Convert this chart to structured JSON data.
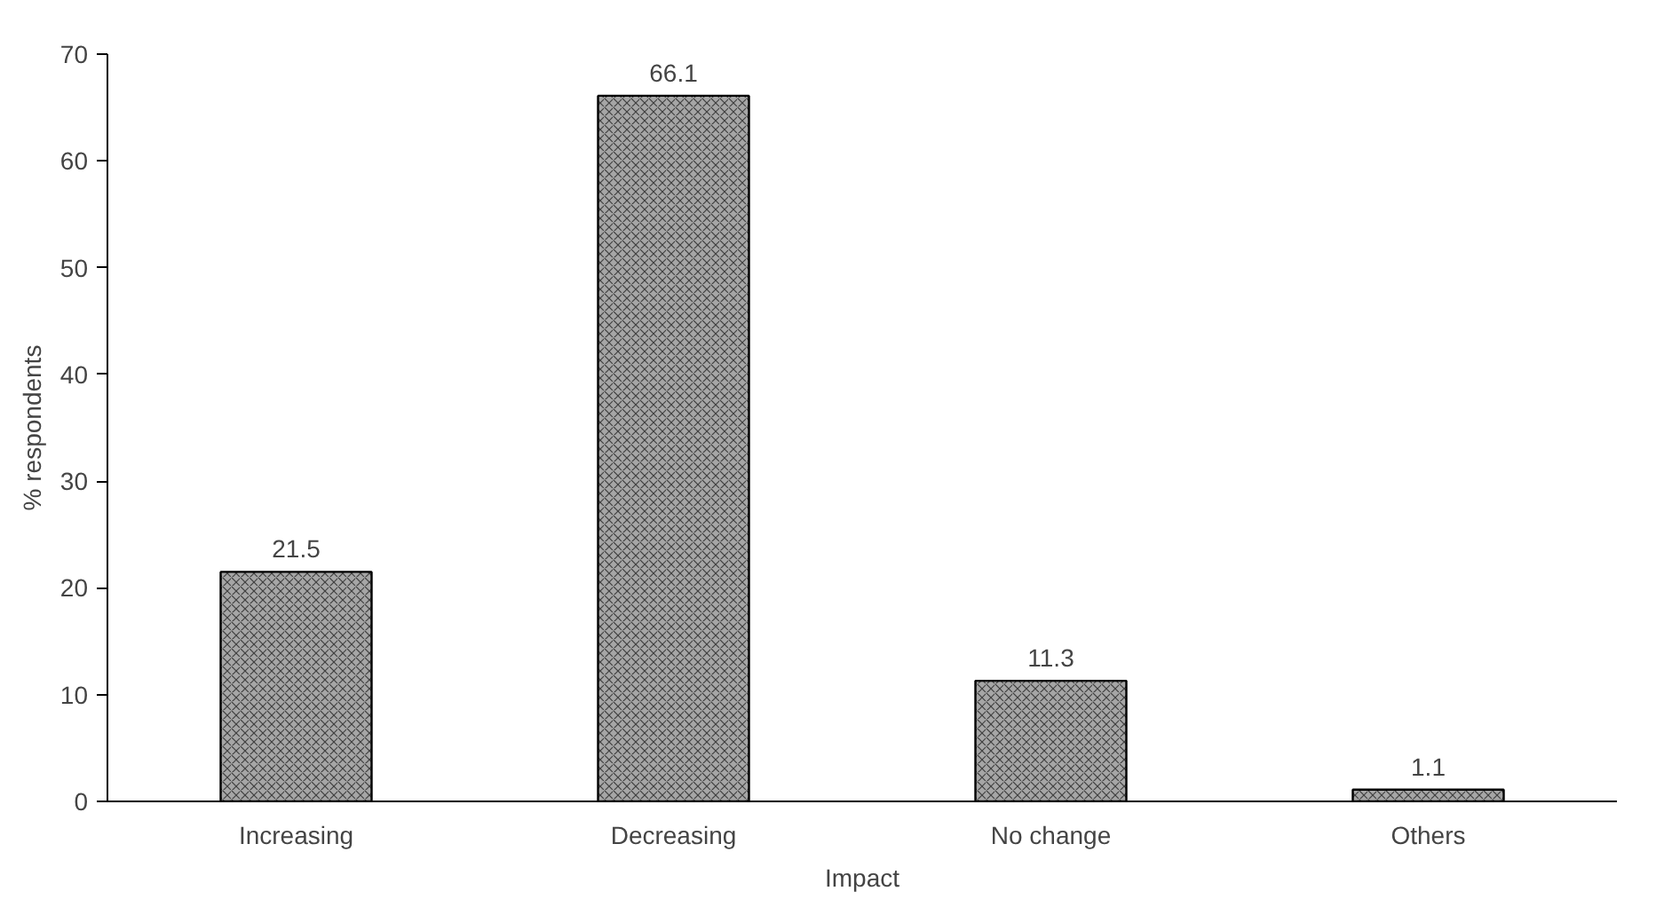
{
  "chart_data": {
    "type": "bar",
    "xlabel": "Impact",
    "ylabel": "% respondents",
    "categories": [
      "Increasing",
      "Decreasing",
      "No change",
      "Others"
    ],
    "values": [
      21.5,
      66.1,
      11.3,
      1.1
    ],
    "color": "#a6a6a6",
    "ylim": [
      0,
      70
    ],
    "yticks": [
      0,
      10,
      20,
      30,
      40,
      50,
      60,
      70
    ],
    "grid": false,
    "data_labels": true
  }
}
